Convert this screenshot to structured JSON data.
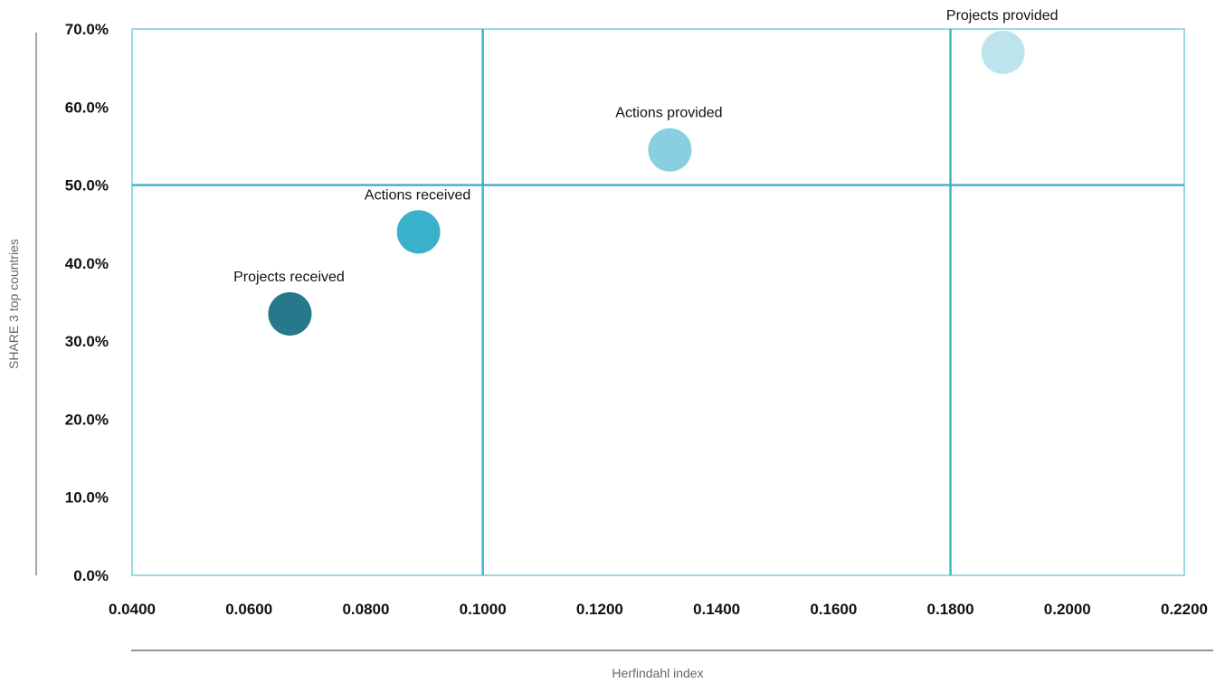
{
  "chart_data": {
    "type": "scatter",
    "xlabel": "Herfindahl index",
    "ylabel": "SHARE 3 top countries",
    "xlim": [
      0.04,
      0.22
    ],
    "ylim": [
      0,
      0.7
    ],
    "x_ticks": [
      0.04,
      0.06,
      0.08,
      0.1,
      0.12,
      0.14,
      0.16,
      0.18,
      0.2,
      0.22
    ],
    "x_tick_labels": [
      "0.0400",
      "0.0600",
      "0.0800",
      "0.1000",
      "0.1200",
      "0.1400",
      "0.1600",
      "0.1800",
      "0.2000",
      "0.2200"
    ],
    "y_ticks": [
      0,
      0.1,
      0.2,
      0.3,
      0.4,
      0.5,
      0.6,
      0.7
    ],
    "y_tick_labels": [
      "0.0%",
      "10.0%",
      "20.0%",
      "30.0%",
      "40.0%",
      "50.0%",
      "60.0%",
      "70.0%"
    ],
    "reference_lines": {
      "x": [
        0.1,
        0.18
      ],
      "y": [
        0.5
      ],
      "color": "#3BB0C9"
    },
    "frame_color": "#5BC0D0",
    "grid": false,
    "points": [
      {
        "label": "Projects received",
        "x": 0.067,
        "y": 0.335,
        "color": "#26788A"
      },
      {
        "label": "Actions received",
        "x": 0.089,
        "y": 0.44,
        "color": "#3AB1CB"
      },
      {
        "label": "Actions provided",
        "x": 0.132,
        "y": 0.545,
        "color": "#88CFDF"
      },
      {
        "label": "Projects provided",
        "x": 0.189,
        "y": 0.67,
        "color": "#BDE4EC"
      }
    ]
  }
}
